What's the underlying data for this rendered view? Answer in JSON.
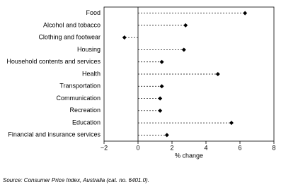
{
  "chart_data": {
    "type": "dot",
    "categories": [
      "Food",
      "Alcohol and tobacco",
      "Clothing and footwear",
      "Housing",
      "Household contents and services",
      "Health",
      "Transportation",
      "Communication",
      "Recreation",
      "Education",
      "Financial and insurance services"
    ],
    "values": [
      6.3,
      2.8,
      -0.8,
      2.7,
      1.4,
      4.7,
      1.4,
      1.3,
      1.3,
      5.5,
      1.7
    ],
    "color": "#000000",
    "xlim": [
      -2,
      8
    ],
    "xticks": [
      {
        "value": -2,
        "label": "−2"
      },
      0,
      2,
      4,
      6,
      8
    ],
    "x_label": "% change",
    "source": "Source: Consumer Price Index, Australia (cat. no. 6401.0)."
  }
}
